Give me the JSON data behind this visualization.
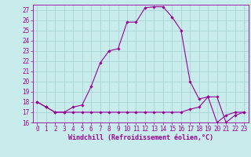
{
  "title": "",
  "xlabel": "Windchill (Refroidissement éolien,°C)",
  "background_color": "#c8ecec",
  "line_color": "#990099",
  "grid_color": "#aad4d4",
  "x_hours": [
    0,
    1,
    2,
    3,
    4,
    5,
    6,
    7,
    8,
    9,
    10,
    11,
    12,
    13,
    14,
    15,
    16,
    17,
    18,
    19,
    20,
    21,
    22,
    23
  ],
  "temp_line": [
    18,
    17.5,
    17,
    17,
    17.5,
    17.7,
    19.5,
    21.8,
    23.0,
    23.2,
    25.8,
    25.8,
    27.2,
    27.3,
    27.3,
    26.3,
    25,
    20,
    18.3,
    18.5,
    16.0,
    16.7,
    17,
    17
  ],
  "wind_line": [
    18,
    17.5,
    17,
    17,
    17,
    17,
    17,
    17,
    17,
    17,
    17,
    17,
    17,
    17,
    17,
    17,
    17,
    17.3,
    17.5,
    18.5,
    18.5,
    16.0,
    16.7,
    17
  ],
  "ylim": [
    16,
    27.5
  ],
  "xlim": [
    -0.5,
    23.5
  ],
  "yticks": [
    16,
    17,
    18,
    19,
    20,
    21,
    22,
    23,
    24,
    25,
    26,
    27
  ],
  "xticks": [
    0,
    1,
    2,
    3,
    4,
    5,
    6,
    7,
    8,
    9,
    10,
    11,
    12,
    13,
    14,
    15,
    16,
    17,
    18,
    19,
    20,
    21,
    22,
    23
  ],
  "tick_fontsize": 5.5,
  "xlabel_fontsize": 6.0
}
